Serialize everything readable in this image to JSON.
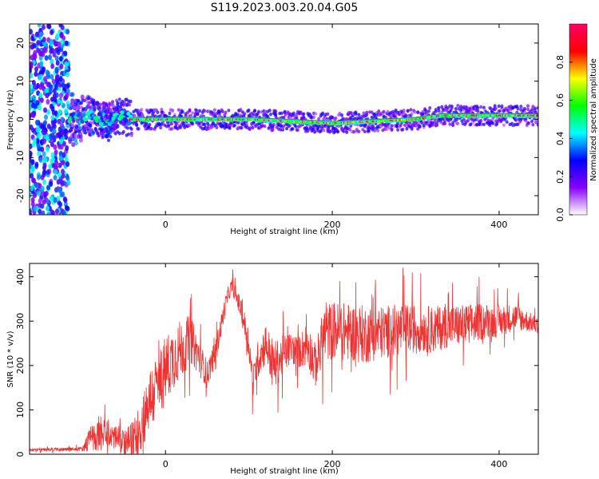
{
  "title": "S119.2023.003.20.04.G05",
  "chart_data": [
    {
      "type": "heatmap",
      "xlabel": "Height of straight line (km)",
      "ylabel": "Frequency (Hz)",
      "xlim": [
        -163,
        447
      ],
      "ylim": [
        -25,
        25
      ],
      "xticks": [
        0,
        200,
        400
      ],
      "yticks": [
        -20,
        -10,
        0,
        10,
        20
      ],
      "colorbar": {
        "label": "Normalized spectral amplitude",
        "range": [
          0,
          1
        ],
        "ticks": [
          "0.0",
          "0.2",
          "0.4",
          "0.6",
          "0.8"
        ],
        "colors": [
          "#ffffff",
          "#8800ff",
          "#0000ff",
          "#00ffff",
          "#00ff00",
          "#ffff00",
          "#ff0000",
          "#ff0066"
        ]
      },
      "ridge": {
        "x": [
          -110,
          -90,
          -70,
          -55,
          -40,
          0,
          100,
          200,
          300,
          330,
          447
        ],
        "frequency": [
          0,
          1,
          -1,
          1,
          0,
          0,
          0,
          -1,
          0,
          1,
          1
        ]
      }
    },
    {
      "type": "line",
      "xlabel": "Height of straight line (km)",
      "ylabel": "SNR (10 * v/v)",
      "xlim": [
        -163,
        447
      ],
      "ylim": [
        0,
        430
      ],
      "xticks": [
        0,
        200,
        400
      ],
      "yticks": [
        0,
        100,
        200,
        300,
        400
      ],
      "color": "#ee3333",
      "envelope": {
        "x": [
          -163,
          -100,
          -90,
          -70,
          -60,
          -50,
          -40,
          -30,
          -20,
          -10,
          0,
          10,
          20,
          30,
          40,
          50,
          60,
          70,
          75,
          80,
          90,
          100,
          105,
          110,
          120,
          130,
          140,
          150,
          160,
          170,
          180,
          190,
          200,
          220,
          240,
          260,
          280,
          300,
          320,
          340,
          360,
          380,
          400,
          420,
          447
        ],
        "base": [
          10,
          12,
          35,
          45,
          40,
          25,
          30,
          60,
          120,
          150,
          190,
          220,
          240,
          260,
          220,
          180,
          230,
          320,
          360,
          380,
          330,
          250,
          160,
          210,
          250,
          200,
          220,
          240,
          230,
          250,
          200,
          270,
          280,
          275,
          270,
          275,
          280,
          285,
          280,
          290,
          290,
          300,
          300,
          310,
          290
        ],
        "amplitude": [
          5,
          8,
          50,
          60,
          50,
          50,
          70,
          100,
          120,
          130,
          130,
          120,
          110,
          90,
          70,
          50,
          50,
          40,
          30,
          30,
          40,
          60,
          60,
          70,
          80,
          90,
          80,
          60,
          60,
          90,
          80,
          110,
          110,
          110,
          110,
          100,
          100,
          90,
          90,
          80,
          80,
          70,
          60,
          50,
          30
        ]
      }
    }
  ]
}
